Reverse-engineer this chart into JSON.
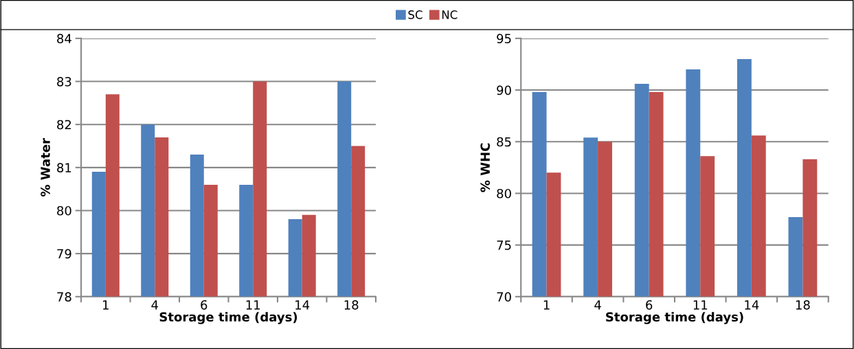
{
  "chart_data": [
    {
      "type": "bar",
      "categories": [
        "1",
        "4",
        "6",
        "11",
        "14",
        "18"
      ],
      "xlabel": "Storage time (days)",
      "ylabel": "% Water",
      "ylim": [
        78,
        84
      ],
      "yticks": [
        78,
        79,
        80,
        81,
        82,
        83,
        84
      ],
      "grid": "y",
      "legend": "top",
      "series": [
        {
          "name": "SC",
          "color": "#4f81bd",
          "values": [
            80.9,
            82.0,
            81.3,
            80.6,
            79.8,
            83.0
          ]
        },
        {
          "name": "NC",
          "color": "#c0504d",
          "values": [
            82.7,
            81.7,
            80.6,
            83.0,
            79.9,
            81.5
          ]
        }
      ]
    },
    {
      "type": "bar",
      "categories": [
        "1",
        "4",
        "6",
        "11",
        "14",
        "18"
      ],
      "xlabel": "Storage time (days)",
      "ylabel": "% WHC",
      "ylim": [
        70,
        95
      ],
      "yticks": [
        70,
        75,
        80,
        85,
        90,
        95
      ],
      "grid": "y",
      "series": [
        {
          "color": "#4f81bd",
          "values": [
            89.8,
            85.4,
            90.6,
            92.0,
            93.0,
            77.7
          ]
        },
        {
          "color": "#c0504d",
          "values": [
            82.0,
            85.0,
            89.8,
            83.6,
            85.6,
            83.3
          ]
        }
      ]
    }
  ]
}
